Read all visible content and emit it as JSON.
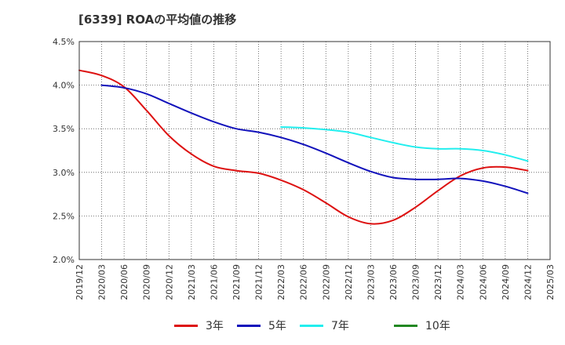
{
  "title": "[6339]  ROAの平均値の推移",
  "chart_data": {
    "type": "line",
    "title": "[6339]  ROAの平均値の推移",
    "xlabel": "",
    "ylabel": "",
    "ylim": [
      2.0,
      4.5
    ],
    "y_ticks": [
      "2.0%",
      "2.5%",
      "3.0%",
      "3.5%",
      "4.0%",
      "4.5%"
    ],
    "x_ticks": [
      "2019/12",
      "2020/03",
      "2020/06",
      "2020/09",
      "2020/12",
      "2021/03",
      "2021/06",
      "2021/09",
      "2021/12",
      "2022/03",
      "2022/06",
      "2022/09",
      "2022/12",
      "2023/03",
      "2023/06",
      "2023/09",
      "2023/12",
      "2024/03",
      "2024/06",
      "2024/09",
      "2024/12",
      "2025/03"
    ],
    "grid": true,
    "legend_position": "bottom",
    "series": [
      {
        "name": "3年",
        "color": "#dd1111",
        "x": [
          "2019/12",
          "2020/03",
          "2020/06",
          "2020/09",
          "2020/12",
          "2021/03",
          "2021/06",
          "2021/09",
          "2021/12",
          "2022/03",
          "2022/06",
          "2022/09",
          "2022/12",
          "2023/03",
          "2023/06",
          "2023/09",
          "2023/12",
          "2024/03",
          "2024/06",
          "2024/09",
          "2024/12"
        ],
        "values": [
          4.17,
          4.11,
          3.98,
          3.71,
          3.42,
          3.21,
          3.07,
          3.02,
          2.99,
          2.91,
          2.8,
          2.65,
          2.49,
          2.41,
          2.45,
          2.6,
          2.79,
          2.96,
          3.05,
          3.06,
          3.02
        ]
      },
      {
        "name": "5年",
        "color": "#1111bb",
        "x": [
          "2020/03",
          "2020/06",
          "2020/09",
          "2020/12",
          "2021/03",
          "2021/06",
          "2021/09",
          "2021/12",
          "2022/03",
          "2022/06",
          "2022/09",
          "2022/12",
          "2023/03",
          "2023/06",
          "2023/09",
          "2023/12",
          "2024/03",
          "2024/06",
          "2024/09",
          "2024/12"
        ],
        "values": [
          4.0,
          3.97,
          3.9,
          3.79,
          3.68,
          3.58,
          3.5,
          3.46,
          3.4,
          3.32,
          3.22,
          3.11,
          3.01,
          2.94,
          2.92,
          2.92,
          2.93,
          2.9,
          2.84,
          2.76
        ]
      },
      {
        "name": "7年",
        "color": "#22eeee",
        "x": [
          "2022/03",
          "2022/06",
          "2022/09",
          "2022/12",
          "2023/03",
          "2023/06",
          "2023/09",
          "2023/12",
          "2024/03",
          "2024/06",
          "2024/09",
          "2024/12"
        ],
        "values": [
          3.52,
          3.51,
          3.49,
          3.46,
          3.4,
          3.34,
          3.29,
          3.27,
          3.27,
          3.25,
          3.2,
          3.13
        ]
      },
      {
        "name": "10年",
        "color": "#228822",
        "x": [],
        "values": []
      }
    ]
  }
}
